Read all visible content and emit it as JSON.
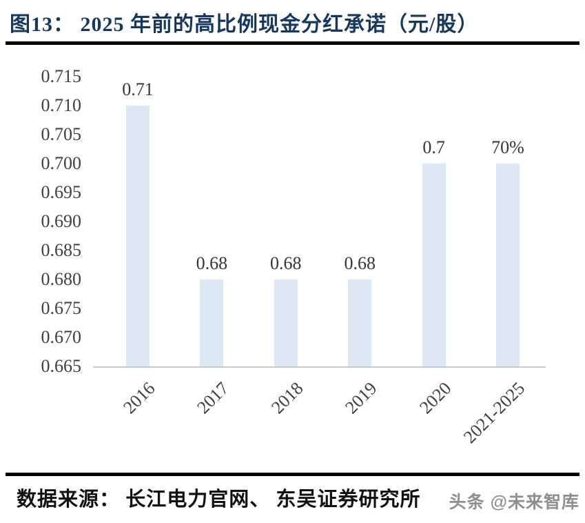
{
  "figure": {
    "title": "图13：  2025 年前的高比例现金分红承诺（元/股）",
    "source": "数据来源：  长江电力官网、  东吴证券研究所",
    "watermark": "头条 @未来智库"
  },
  "colors": {
    "title_text": "#17375e",
    "bar_fill": "#dbe7f3",
    "axis_line": "#c9c9c9",
    "tick_text": "#3f3f3f",
    "divider": "#000000",
    "watermark_text": "#8f8f8f"
  },
  "chart_data": {
    "type": "bar",
    "title": "2025 年前的高比例现金分红承诺（元/股）",
    "categories": [
      "2016",
      "2017",
      "2018",
      "2019",
      "2020",
      "2021-2025"
    ],
    "values": [
      0.71,
      0.68,
      0.68,
      0.68,
      0.7,
      0.7
    ],
    "bar_labels": [
      "0.71",
      "0.68",
      "0.68",
      "0.68",
      "0.7",
      "70%"
    ],
    "xlabel": "",
    "ylabel": "",
    "ylim": [
      0.665,
      0.715
    ],
    "ytick_step": 0.005,
    "ytick_labels": [
      "0.715",
      "0.710",
      "0.705",
      "0.700",
      "0.695",
      "0.690",
      "0.685",
      "0.680",
      "0.675",
      "0.670",
      "0.665"
    ],
    "grid": false,
    "legend_position": "none"
  }
}
